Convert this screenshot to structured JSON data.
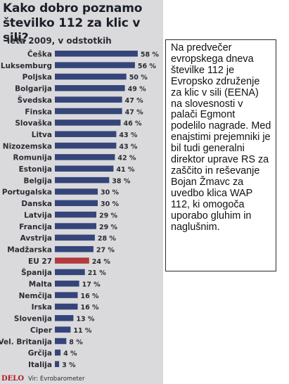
{
  "chart_data": {
    "type": "bar",
    "title": "Kako dobro poznamo številko 112 za klic v sili?",
    "subtitle": "leta 2009, v odstotkih",
    "categories": [
      "Češka",
      "Luksemburg",
      "Poljska",
      "Bolgarija",
      "Švedska",
      "Finska",
      "Slovaška",
      "Litva",
      "Nizozemska",
      "Romunija",
      "Estonija",
      "Belgija",
      "Portugalska",
      "Danska",
      "Latvija",
      "Francija",
      "Avstrija",
      "Madžarska",
      "EU 27",
      "Španija",
      "Malta",
      "Nemčija",
      "Irska",
      "Slovenija",
      "Ciper",
      "Vel. Britanija",
      "Grčija",
      "Italija"
    ],
    "values": [
      58,
      56,
      50,
      49,
      47,
      47,
      46,
      43,
      43,
      42,
      41,
      38,
      30,
      30,
      29,
      29,
      28,
      27,
      24,
      21,
      17,
      16,
      16,
      13,
      11,
      8,
      4,
      3
    ],
    "value_labels": [
      "58 %",
      "56 %",
      "50 %",
      "49 %",
      "47 %",
      "47 %",
      "46 %",
      "43 %",
      "43 %",
      "42 %",
      "41 %",
      "38 %",
      "30 %",
      "30 %",
      "29 %",
      "29 %",
      "28 %",
      "27 %",
      "24 %",
      "21 %",
      "17 %",
      "16 %",
      "16 %",
      "13 %",
      "11 %",
      "8 %",
      "4 %",
      "3 %"
    ],
    "highlight_category": "EU 27",
    "bar_orientation": "horizontal",
    "grid": false,
    "xlim": [
      0,
      60
    ]
  },
  "colors": {
    "bar": "#35457a",
    "highlight_bar": "#b23a3c",
    "background": "#dadadc",
    "logo": "#b3161f"
  },
  "footer": {
    "logo": "DELO",
    "source": "Vir: Evrobarometer"
  },
  "panel": {
    "text": "Na predvečer evropskega dneva številke 112 je Evropsko združenje za klic v sili (EENA) na slovesnosti v palači Egmont podelilo nagrade. Med enajstimi prejemniki je bil tudi generalni direktor uprave RS za zaščito in reševanje Bojan Žmavc za uvedbo klica WAP 112, ki omogoča uporabo gluhim in naglušnim."
  }
}
